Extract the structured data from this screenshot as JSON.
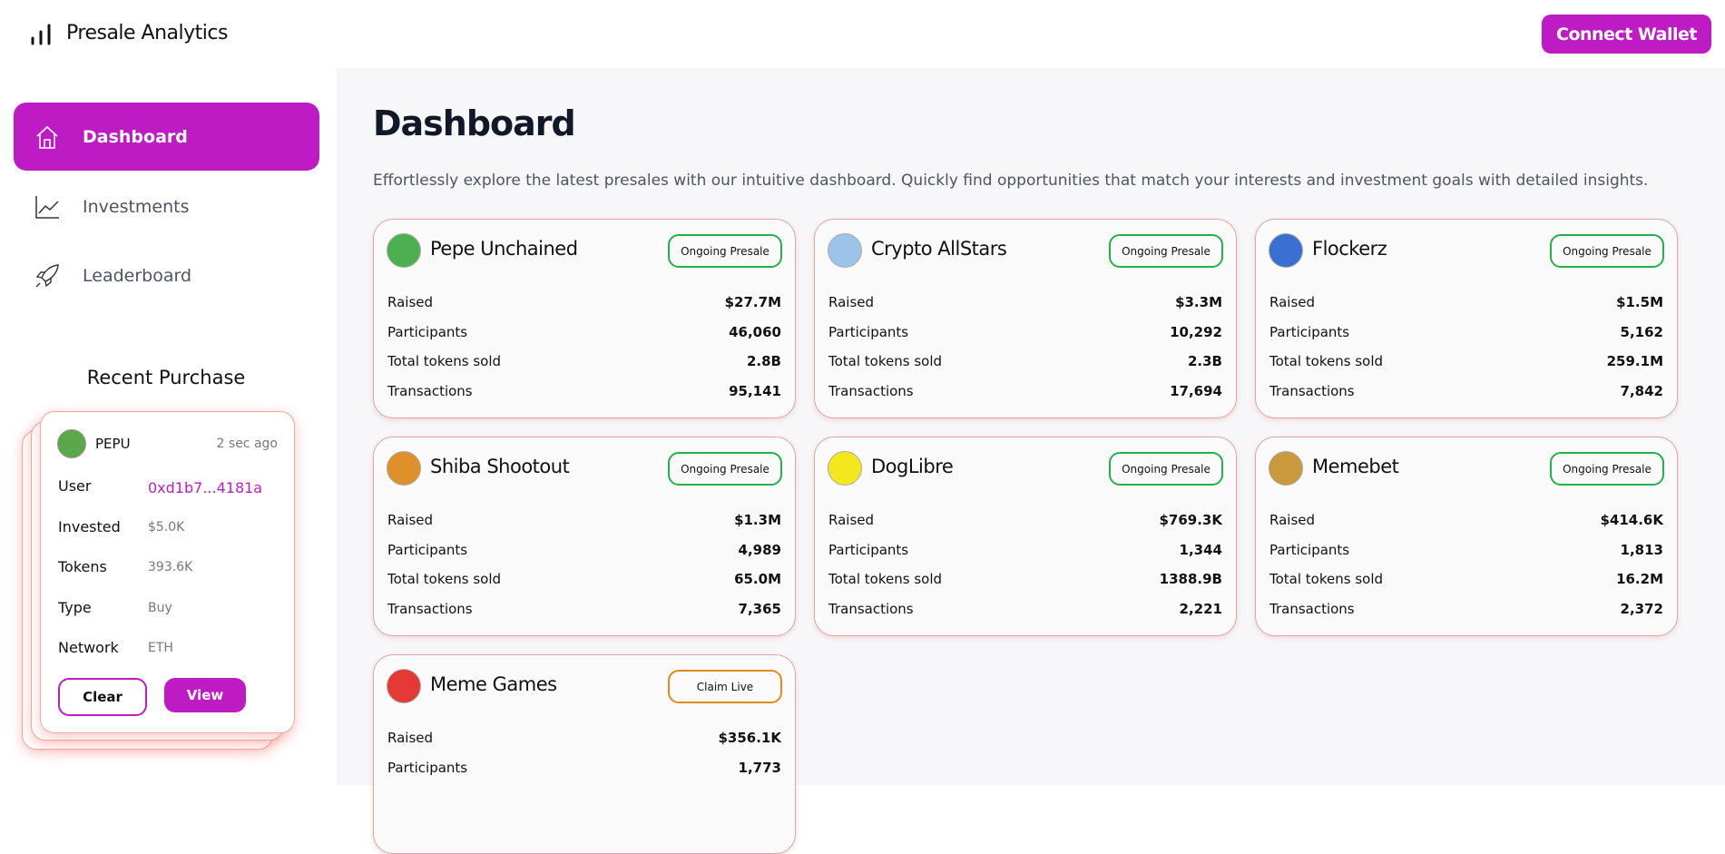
{
  "header": {
    "brand": "Presale Analytics",
    "button": "Connect Wallet"
  },
  "nav": [
    "Dashboard",
    "Investments",
    "Leaderboard"
  ],
  "recent": {
    "title": "Recent Purchase",
    "token": "PEPU",
    "time": "2 sec ago",
    "rows": [
      {
        "label": "User",
        "value": "0xd1b7...4181a"
      },
      {
        "label": "Invested",
        "value": "$5.0K"
      },
      {
        "label": "Tokens",
        "value": "393.6K"
      },
      {
        "label": "Type",
        "value": "Buy"
      },
      {
        "label": "Network",
        "value": "ETH"
      }
    ],
    "clear": "Clear",
    "view": "View"
  },
  "main": {
    "title": "Dashboard",
    "description": "Effortlessly explore the latest presales with our intuitive dashboard. Quickly find opportunities that match your interests and investment goals with detailed insights.",
    "cards": [
      {
        "name": "Pepe Unchained",
        "status": "Ongoing Presale",
        "stats": [
          {
            "label": "Raised",
            "value": "$27.7M"
          },
          {
            "label": "Participants",
            "value": "46,060"
          },
          {
            "label": "Total tokens sold",
            "value": "2.8B"
          },
          {
            "label": "Transactions",
            "value": "95,141"
          }
        ]
      },
      {
        "name": "Crypto AllStars",
        "status": "Ongoing Presale",
        "stats": [
          {
            "label": "Raised",
            "value": "$3.3M"
          },
          {
            "label": "Participants",
            "value": "10,292"
          },
          {
            "label": "Total tokens sold",
            "value": "2.3B"
          },
          {
            "label": "Transactions",
            "value": "17,694"
          }
        ]
      },
      {
        "name": "Flockerz",
        "status": "Ongoing Presale",
        "stats": [
          {
            "label": "Raised",
            "value": "$1.5M"
          },
          {
            "label": "Participants",
            "value": "5,162"
          },
          {
            "label": "Total tokens sold",
            "value": "259.1M"
          },
          {
            "label": "Transactions",
            "value": "7,842"
          }
        ]
      },
      {
        "name": "Shiba Shootout",
        "status": "Ongoing Presale",
        "stats": [
          {
            "label": "Raised",
            "value": "$1.3M"
          },
          {
            "label": "Participants",
            "value": "4,989"
          },
          {
            "label": "Total tokens sold",
            "value": "65.0M"
          },
          {
            "label": "Transactions",
            "value": "7,365"
          }
        ]
      },
      {
        "name": "DogLibre",
        "status": "Ongoing Presale",
        "stats": [
          {
            "label": "Raised",
            "value": "$769.3K"
          },
          {
            "label": "Participants",
            "value": "1,344"
          },
          {
            "label": "Total tokens sold",
            "value": "1388.9B"
          },
          {
            "label": "Transactions",
            "value": "2,221"
          }
        ]
      },
      {
        "name": "Memebet",
        "status": "Ongoing Presale",
        "stats": [
          {
            "label": "Raised",
            "value": "$414.6K"
          },
          {
            "label": "Participants",
            "value": "1,813"
          },
          {
            "label": "Total tokens sold",
            "value": "16.2M"
          },
          {
            "label": "Transactions",
            "value": "2,372"
          }
        ]
      },
      {
        "name": "Meme Games",
        "status": "Claim Live",
        "stats": [
          {
            "label": "Raised",
            "value": "$356.1K"
          },
          {
            "label": "Participants",
            "value": "1,773"
          }
        ]
      }
    ]
  }
}
